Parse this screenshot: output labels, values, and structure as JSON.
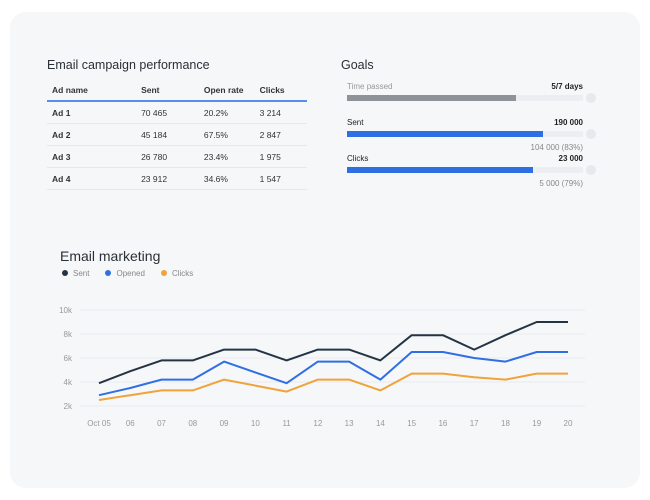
{
  "table": {
    "title": "Email campaign performance",
    "headers": [
      "Ad name",
      "Sent",
      "Open rate",
      "Clicks"
    ],
    "rows": [
      [
        "Ad 1",
        "70 465",
        "20.2%",
        "3 214"
      ],
      [
        "Ad 2",
        "45 184",
        "67.5%",
        "2 847"
      ],
      [
        "Ad 3",
        "26 780",
        "23.4%",
        "1 975"
      ],
      [
        "Ad 4",
        "23 912",
        "34.6%",
        "1 547"
      ]
    ]
  },
  "goals": {
    "title": "Goals",
    "items": [
      {
        "label": "Time passed",
        "target": "5/7 days",
        "progress": 0.714,
        "color": "#8e9399",
        "sub": ""
      },
      {
        "label": "Sent",
        "target": "190 000",
        "progress": 0.83,
        "color": "#2f6fe4",
        "sub": "104 000 (83%)"
      },
      {
        "label": "Clicks",
        "target": "23 000",
        "progress": 0.79,
        "color": "#2f6fe4",
        "sub": "5 000 (79%)"
      }
    ]
  },
  "chart_data": {
    "type": "line",
    "title": "Email marketing",
    "legend_position": "top-left",
    "grid": true,
    "categories": [
      "Oct 05",
      "06",
      "07",
      "08",
      "09",
      "10",
      "11",
      "12",
      "13",
      "14",
      "15",
      "16",
      "17",
      "18",
      "19",
      "20"
    ],
    "yticks": [
      "10k",
      "8k",
      "6k",
      "4k",
      "2k"
    ],
    "ylim": [
      1600,
      10000
    ],
    "series": [
      {
        "name": "Sent",
        "color": "#253444",
        "values": [
          3900,
          4900,
          5800,
          5800,
          6700,
          6700,
          5800,
          6700,
          6700,
          5800,
          7900,
          7900,
          6700,
          7900,
          9000,
          9000
        ]
      },
      {
        "name": "Opened",
        "color": "#2f6fe4",
        "values": [
          2900,
          3500,
          4200,
          4200,
          5700,
          4800,
          3900,
          5700,
          5700,
          4200,
          6500,
          6500,
          6000,
          5700,
          6500,
          6500
        ]
      },
      {
        "name": "Clicks",
        "color": "#f0a33a",
        "values": [
          2500,
          2900,
          3300,
          3300,
          4200,
          3700,
          3200,
          4200,
          4200,
          3300,
          4700,
          4700,
          4400,
          4200,
          4700,
          4700
        ]
      }
    ]
  }
}
